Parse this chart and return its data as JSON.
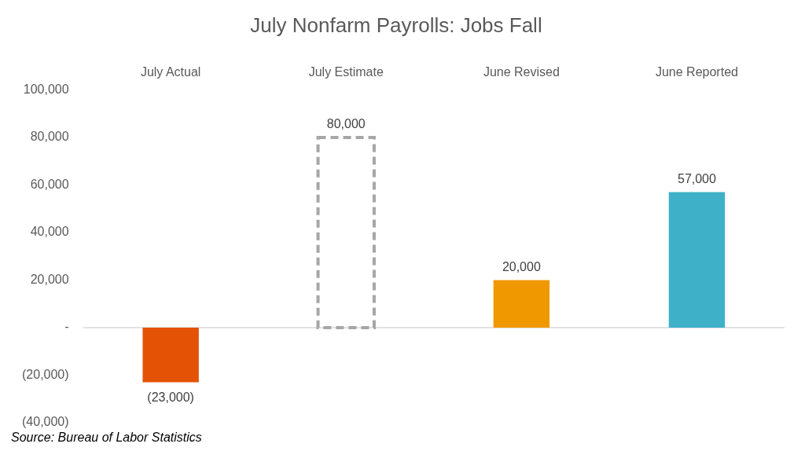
{
  "chart_data": {
    "type": "bar",
    "title": "July Nonfarm Payrolls: Jobs Fall",
    "categories": [
      "July Actual",
      "July Estimate",
      "June Revised",
      "June Reported"
    ],
    "series": [
      {
        "colors": [
          "#e35205",
          null,
          "#f09800",
          "#3eb1c8"
        ],
        "values": [
          -23000,
          null,
          20000,
          57000
        ],
        "value_labels": [
          "(23,000)",
          null,
          "20,000",
          "57,000"
        ]
      },
      {
        "color": "#a6a6a6",
        "line_style": "dashed",
        "values": [
          null,
          80000,
          null,
          null
        ],
        "value_labels": [
          null,
          "80,000",
          null,
          null
        ]
      }
    ],
    "ylim": [
      -40000,
      100000
    ],
    "yticks": [
      {
        "value": -40000,
        "label": "(40,000)"
      },
      {
        "value": -20000,
        "label": "(20,000)"
      },
      {
        "value": 0,
        "label": "-"
      },
      {
        "value": 20000,
        "label": "20,000"
      },
      {
        "value": 40000,
        "label": "40,000"
      },
      {
        "value": 60000,
        "label": "60,000"
      },
      {
        "value": 80000,
        "label": "80,000"
      },
      {
        "value": 100000,
        "label": "100,000"
      }
    ],
    "grid": false,
    "legend": false,
    "ref_lines": [
      {
        "axis": "y",
        "value": 0,
        "color": "#d9d9d9"
      }
    ],
    "annotations": [
      "Source: Bureau of Labor Statistics"
    ]
  }
}
